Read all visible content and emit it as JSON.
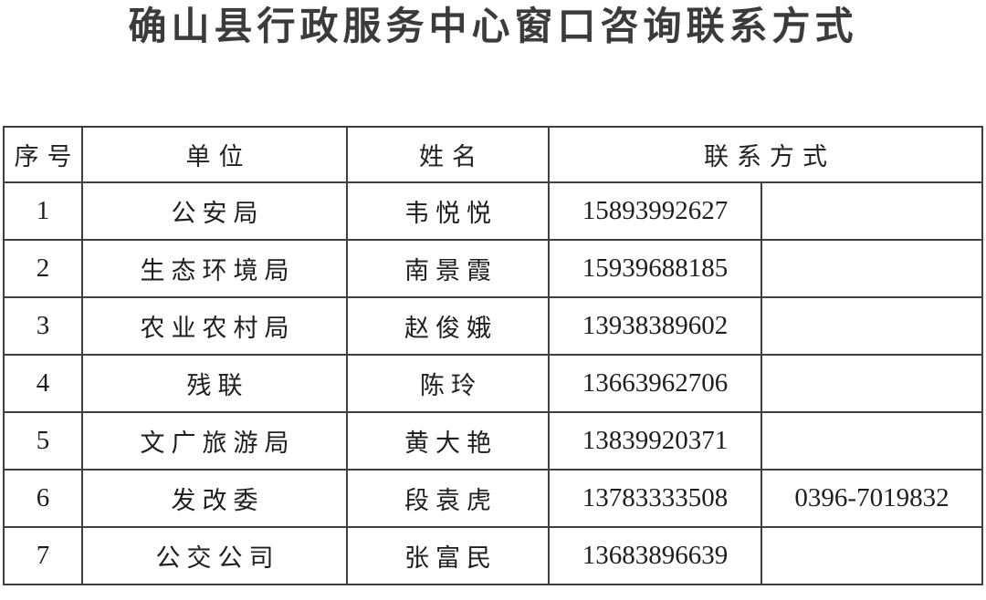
{
  "page": {
    "title": "确山县行政服务中心窗口咨询联系方式"
  },
  "table": {
    "headers": {
      "no": "序号",
      "unit": "单位",
      "name": "姓名",
      "contact": "联系方式"
    },
    "rows": [
      {
        "no": "1",
        "unit": "公安局",
        "name": "韦悦悦",
        "phone": "15893992627",
        "landline": ""
      },
      {
        "no": "2",
        "unit": "生态环境局",
        "name": "南景霞",
        "phone": "15939688185",
        "landline": ""
      },
      {
        "no": "3",
        "unit": "农业农村局",
        "name": "赵俊娥",
        "phone": "13938389602",
        "landline": ""
      },
      {
        "no": "4",
        "unit": "残联",
        "name": "陈玲",
        "phone": "13663962706",
        "landline": ""
      },
      {
        "no": "5",
        "unit": "文广旅游局",
        "name": "黄大艳",
        "phone": "13839920371",
        "landline": ""
      },
      {
        "no": "6",
        "unit": "发改委",
        "name": "段袁虎",
        "phone": "13783333508",
        "landline": "0396-7019832"
      },
      {
        "no": "7",
        "unit": "公交公司",
        "name": "张富民",
        "phone": "13683896639",
        "landline": ""
      }
    ]
  }
}
